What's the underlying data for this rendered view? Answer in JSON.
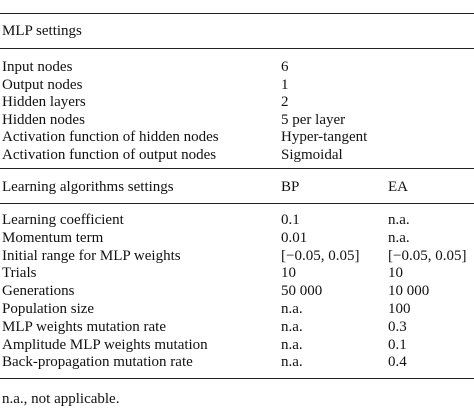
{
  "table": {
    "section1": {
      "title": "MLP settings",
      "rows": [
        [
          "Input nodes",
          "6"
        ],
        [
          "Output nodes",
          "1"
        ],
        [
          "Hidden layers",
          "2"
        ],
        [
          "Hidden nodes",
          "5 per layer"
        ],
        [
          "Activation function of hidden nodes",
          "Hyper-tangent"
        ],
        [
          "Activation function of output nodes",
          "Sigmoidal"
        ]
      ]
    },
    "section2": {
      "header": [
        "Learning algorithms settings",
        "BP",
        "EA"
      ],
      "rows": [
        [
          "Learning coefficient",
          "0.1",
          "n.a."
        ],
        [
          "Momentum term",
          "0.01",
          "n.a."
        ],
        [
          "Initial range for MLP weights",
          "[−0.05, 0.05]",
          "[−0.05, 0.05]"
        ],
        [
          "Trials",
          "10",
          "10"
        ],
        [
          "Generations",
          "50 000",
          "10 000"
        ],
        [
          "Population size",
          "n.a.",
          "100"
        ],
        [
          "MLP weights mutation rate",
          "n.a.",
          "0.3"
        ],
        [
          "Amplitude MLP weights mutation",
          "n.a.",
          "0.1"
        ],
        [
          "Back-propagation mutation rate",
          "n.a.",
          "0.4"
        ]
      ]
    },
    "footnote": "n.a., not applicable."
  }
}
